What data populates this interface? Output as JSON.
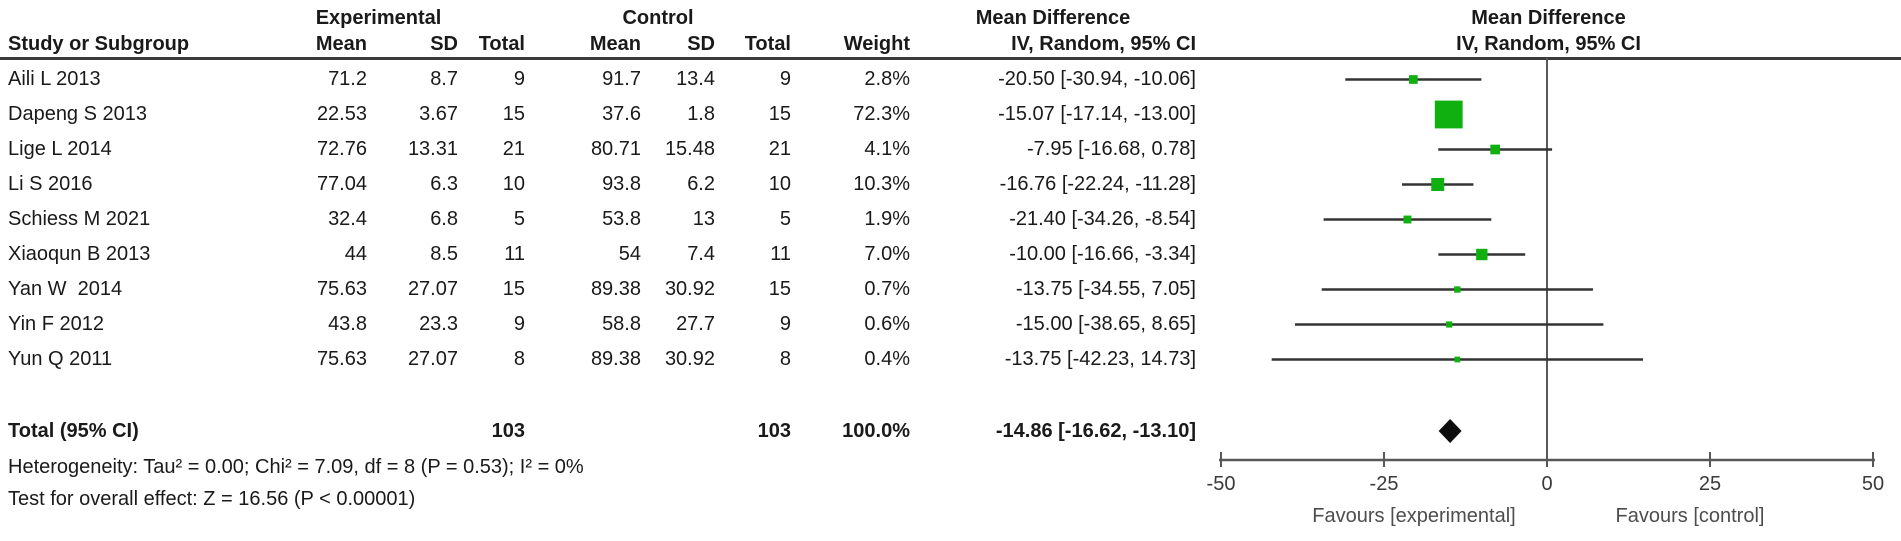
{
  "colors": {
    "marker_green": "#10b010",
    "ci_line": "#333333",
    "diamond": "#0d0d0d",
    "axis_gray": "#585858",
    "rule": "#3b3b3b"
  },
  "chart_data": {
    "type": "forest",
    "effect_measure": "Mean Difference",
    "model": "IV, Random, 95% CI",
    "group_headers": {
      "experimental": "Experimental",
      "control": "Control",
      "mean_difference_left": "Mean Difference",
      "mean_difference_right": "Mean Difference"
    },
    "columns": {
      "study": "Study or Subgroup",
      "mean_exp": "Mean",
      "sd_exp": "SD",
      "total_exp": "Total",
      "mean_ctl": "Mean",
      "sd_ctl": "SD",
      "total_ctl": "Total",
      "weight": "Weight",
      "ci_left": "IV, Random, 95% CI",
      "ci_right": "IV, Random, 95% CI"
    },
    "studies": [
      {
        "name": "Aili L 2013",
        "exp_mean": "71.2",
        "exp_sd": "8.7",
        "exp_total": "9",
        "ctl_mean": "91.7",
        "ctl_sd": "13.4",
        "ctl_total": "9",
        "weight": "2.8%",
        "ci_label": "-20.50 [-30.94, -10.06]",
        "md": -20.5,
        "lo": -30.94,
        "hi": -10.06,
        "weight_pct": 2.8
      },
      {
        "name": "Dapeng S 2013",
        "exp_mean": "22.53",
        "exp_sd": "3.67",
        "exp_total": "15",
        "ctl_mean": "37.6",
        "ctl_sd": "1.8",
        "ctl_total": "15",
        "weight": "72.3%",
        "ci_label": "-15.07 [-17.14, -13.00]",
        "md": -15.07,
        "lo": -17.14,
        "hi": -13.0,
        "weight_pct": 72.3
      },
      {
        "name": "Lige L 2014",
        "exp_mean": "72.76",
        "exp_sd": "13.31",
        "exp_total": "21",
        "ctl_mean": "80.71",
        "ctl_sd": "15.48",
        "ctl_total": "21",
        "weight": "4.1%",
        "ci_label": "-7.95 [-16.68, 0.78]",
        "md": -7.95,
        "lo": -16.68,
        "hi": 0.78,
        "weight_pct": 4.1
      },
      {
        "name": "Li S 2016",
        "exp_mean": "77.04",
        "exp_sd": "6.3",
        "exp_total": "10",
        "ctl_mean": "93.8",
        "ctl_sd": "6.2",
        "ctl_total": "10",
        "weight": "10.3%",
        "ci_label": "-16.76 [-22.24, -11.28]",
        "md": -16.76,
        "lo": -22.24,
        "hi": -11.28,
        "weight_pct": 10.3
      },
      {
        "name": "Schiess M 2021",
        "exp_mean": "32.4",
        "exp_sd": "6.8",
        "exp_total": "5",
        "ctl_mean": "53.8",
        "ctl_sd": "13",
        "ctl_total": "5",
        "weight": "1.9%",
        "ci_label": "-21.40 [-34.26, -8.54]",
        "md": -21.4,
        "lo": -34.26,
        "hi": -8.54,
        "weight_pct": 1.9
      },
      {
        "name": "Xiaoqun B 2013",
        "exp_mean": "44",
        "exp_sd": "8.5",
        "exp_total": "11",
        "ctl_mean": "54",
        "ctl_sd": "7.4",
        "ctl_total": "11",
        "weight": "7.0%",
        "ci_label": "-10.00 [-16.66, -3.34]",
        "md": -10.0,
        "lo": -16.66,
        "hi": -3.34,
        "weight_pct": 7.0
      },
      {
        "name": "Yan W  2014",
        "exp_mean": "75.63",
        "exp_sd": "27.07",
        "exp_total": "15",
        "ctl_mean": "89.38",
        "ctl_sd": "30.92",
        "ctl_total": "15",
        "weight": "0.7%",
        "ci_label": "-13.75 [-34.55, 7.05]",
        "md": -13.75,
        "lo": -34.55,
        "hi": 7.05,
        "weight_pct": 0.7
      },
      {
        "name": "Yin F 2012",
        "exp_mean": "43.8",
        "exp_sd": "23.3",
        "exp_total": "9",
        "ctl_mean": "58.8",
        "ctl_sd": "27.7",
        "ctl_total": "9",
        "weight": "0.6%",
        "ci_label": "-15.00 [-38.65, 8.65]",
        "md": -15.0,
        "lo": -38.65,
        "hi": 8.65,
        "weight_pct": 0.6
      },
      {
        "name": "Yun Q 2011",
        "exp_mean": "75.63",
        "exp_sd": "27.07",
        "exp_total": "8",
        "ctl_mean": "89.38",
        "ctl_sd": "30.92",
        "ctl_total": "8",
        "weight": "0.4%",
        "ci_label": "-13.75 [-42.23, 14.73]",
        "md": -13.75,
        "lo": -42.23,
        "hi": 14.73,
        "weight_pct": 0.4
      }
    ],
    "total": {
      "label": "Total (95% CI)",
      "exp_total": "103",
      "ctl_total": "103",
      "weight": "100.0%",
      "ci_label": "-14.86 [-16.62, -13.10]",
      "md": -14.86,
      "lo": -16.62,
      "hi": -13.1
    },
    "footer": {
      "heterogeneity": "Heterogeneity: Tau² = 0.00; Chi² = 7.09, df = 8 (P = 0.53); I² = 0%",
      "overall_effect": "Test for overall effect: Z = 16.56 (P < 0.00001)"
    },
    "axis": {
      "min": -50,
      "max": 50,
      "ticks": [
        -50,
        -25,
        0,
        25,
        50
      ],
      "tick_labels": [
        "-50",
        "-25",
        "0",
        "25",
        "50"
      ],
      "favours_left": "Favours [experimental]",
      "favours_right": "Favours [control]"
    }
  }
}
